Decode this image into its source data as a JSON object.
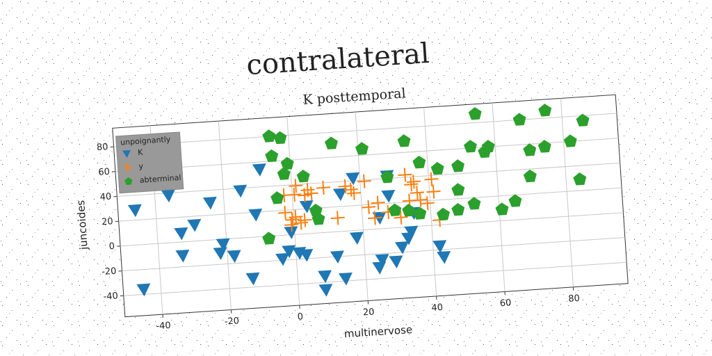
{
  "chart_data": {
    "type": "scatter",
    "title": "contralateral",
    "subtitle": "K posttemporal",
    "xlabel": "multinervose",
    "ylabel": "juncoides",
    "legend_title": "unpoignantly",
    "legend_position": "upper left",
    "grid": true,
    "xlim": [
      -51,
      96
    ],
    "ylim": [
      -57,
      95
    ],
    "xticks": [
      -40,
      -20,
      0,
      20,
      40,
      60,
      80
    ],
    "yticks": [
      -40,
      -20,
      0,
      20,
      40,
      60,
      80
    ],
    "series": [
      {
        "name": "K",
        "color": "#1f77b4",
        "marker": "triangle_down",
        "x": [
          -46,
          -45,
          -36,
          -33,
          -33,
          -29,
          -24,
          -21,
          -22,
          -18,
          -15,
          -13,
          -11,
          -9,
          -4,
          -1,
          -2,
          1,
          3,
          4,
          8,
          8,
          12,
          14,
          14,
          18,
          18,
          24,
          25,
          25,
          28,
          29,
          31,
          33,
          34,
          35,
          42,
          43,
          28
        ],
        "values": [
          28,
          -36,
          38,
          7,
          -11,
          13,
          30,
          -4,
          -11,
          -14,
          38,
          -33,
          18,
          54,
          -19,
          2,
          -13,
          -15,
          -17,
          22,
          -35,
          -46,
          -20,
          -38,
          30,
          42,
          -6,
          -31,
          -25,
          9,
          26,
          -27,
          -16,
          -9,
          -4,
          11,
          -17,
          -26,
          42
        ]
      },
      {
        "name": "y",
        "color": "#ff7f0e",
        "marker": "plus",
        "x": [
          -2.4,
          -0.4,
          0.6,
          -0.8,
          2,
          3.2,
          -2.4,
          0.6,
          3.6,
          5.6,
          1.2,
          4.6,
          9.2,
          12.8,
          15.6,
          17.2,
          18,
          21.2,
          22,
          23.6,
          24.8,
          27.6,
          33.2,
          34.8,
          35.6,
          36.4,
          37.2,
          39.2,
          40.8,
          41.2,
          42.4,
          34,
          31.2
        ],
        "values": [
          18,
          12,
          14,
          8,
          9,
          11,
          32,
          32,
          31,
          32,
          39,
          35,
          36,
          11,
          36,
          33,
          30,
          39,
          18,
          9,
          21,
          13,
          42,
          34,
          36,
          27,
          21,
          18,
          37,
          27,
          4,
          21,
          8
        ]
      },
      {
        "name": "abterminal",
        "color": "#2ca02c",
        "marker": "pentagon",
        "x": [
          -5.6,
          -2.4,
          -5.2,
          -0.8,
          -2,
          3.6,
          -4.4,
          -7.6,
          6.6,
          7.2,
          12.4,
          21.2,
          28,
          33.6,
          37.6,
          42.8,
          48.8,
          48.4,
          48,
          52.8,
          52.8,
          54.8,
          58,
          56.8,
          60.8,
          64.8,
          67.6,
          69.6,
          70,
          74.4,
          75.2,
          82,
          84,
          86,
          29.6,
          33.6,
          36.8,
          43.6
        ],
        "values": [
          80,
          78,
          64,
          57,
          49,
          46,
          30,
          -2,
          18,
          11,
          71,
          65,
          41,
          69,
          51,
          45,
          46,
          27,
          11,
          15,
          61,
          87,
          60,
          56,
          9,
          15,
          80,
          34,
          55,
          57,
          86,
          60,
          29,
          76,
          14,
          13,
          10,
          8
        ]
      }
    ]
  }
}
